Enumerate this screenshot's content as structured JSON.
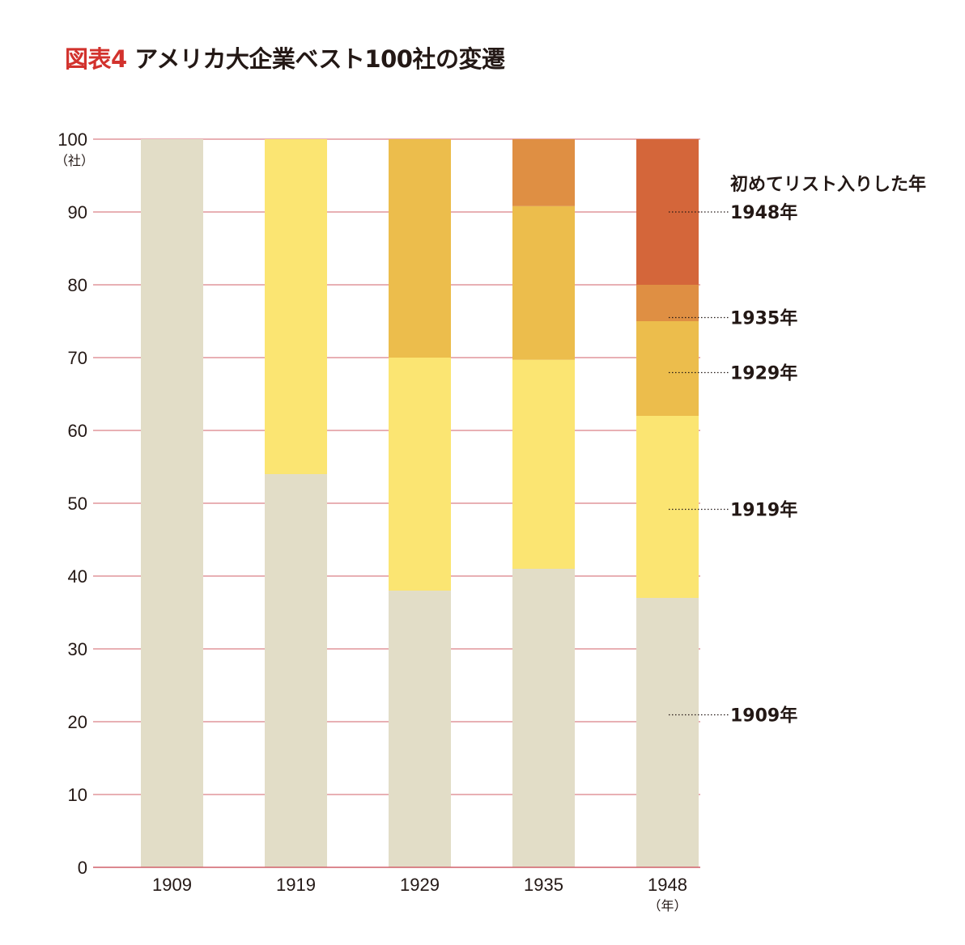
{
  "title": {
    "figure_label": "図表4",
    "text": "アメリカ大企業ベスト100社の変遷"
  },
  "chart_data": {
    "type": "bar",
    "stacked": true,
    "categories": [
      "1909",
      "1919",
      "1929",
      "1935",
      "1948"
    ],
    "series": [
      {
        "name": "1909年",
        "color": "#e2ddc7",
        "values": [
          100,
          54,
          38,
          41,
          37
        ]
      },
      {
        "name": "1919年",
        "color": "#fbe572",
        "values": [
          0,
          46,
          32,
          28.7,
          25
        ]
      },
      {
        "name": "1929年",
        "color": "#ecbd4c",
        "values": [
          0,
          0,
          30,
          21.1,
          13
        ]
      },
      {
        "name": "1935年",
        "color": "#df8f43",
        "values": [
          0,
          0,
          0,
          9.2,
          5
        ]
      },
      {
        "name": "1948年",
        "color": "#d4663a",
        "values": [
          0,
          0,
          0,
          0,
          20
        ]
      }
    ],
    "yticks": [
      0,
      10,
      20,
      30,
      40,
      50,
      60,
      70,
      80,
      90,
      100
    ],
    "ylim": [
      0,
      100
    ],
    "y_unit": "（社）",
    "x_unit": "（年）",
    "legend_title": "初めてリスト入りした年",
    "gridline_color": "#d0606a",
    "grid": true,
    "legend_placement": "right"
  }
}
